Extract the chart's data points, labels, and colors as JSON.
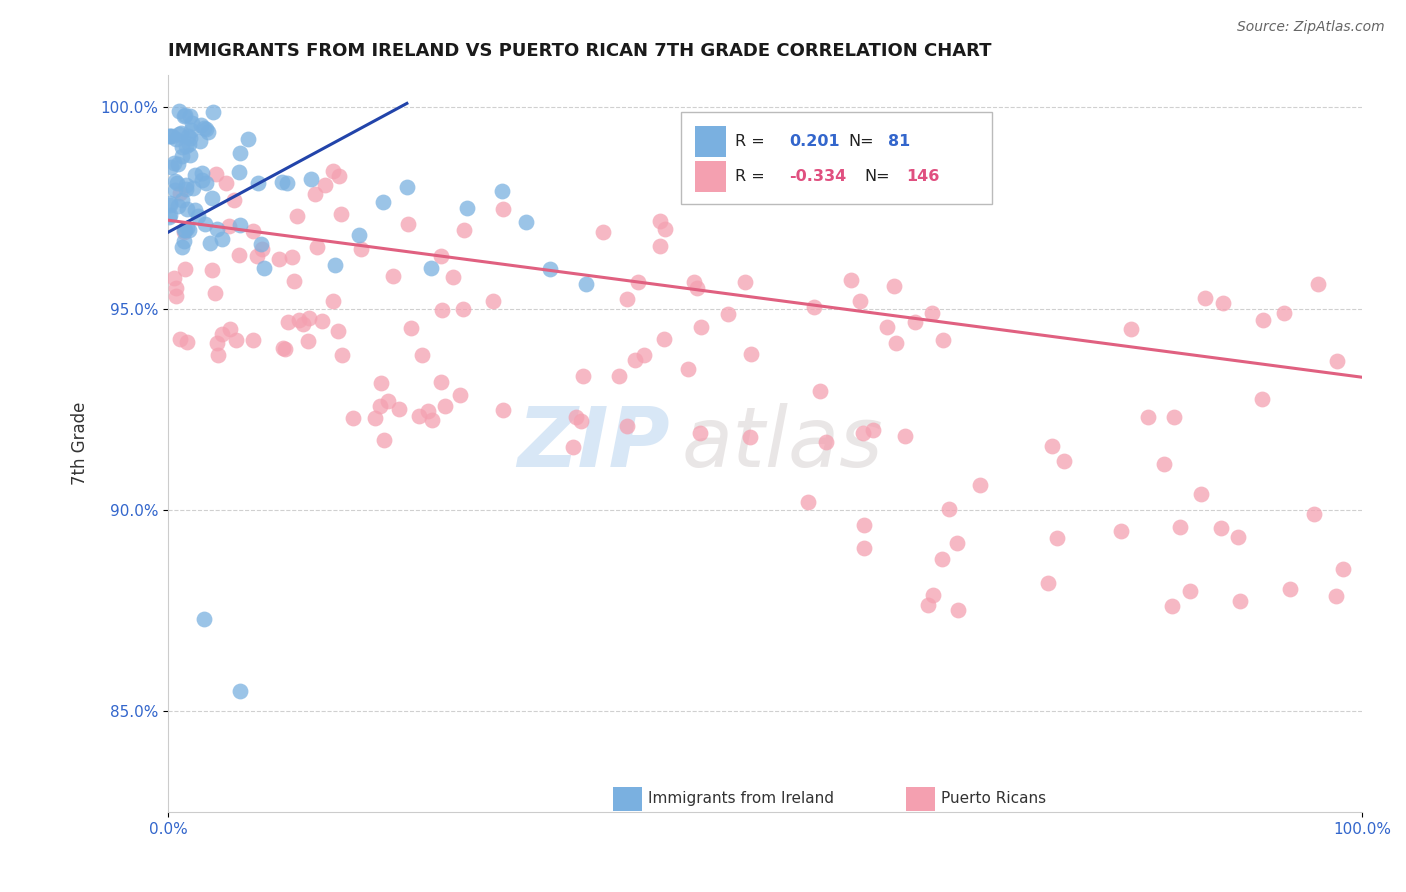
{
  "title": "IMMIGRANTS FROM IRELAND VS PUERTO RICAN 7TH GRADE CORRELATION CHART",
  "source": "Source: ZipAtlas.com",
  "ylabel": "7th Grade",
  "xlim": [
    0.0,
    1.0
  ],
  "ylim": [
    0.825,
    1.008
  ],
  "yticks": [
    0.85,
    0.9,
    0.95,
    1.0
  ],
  "ytick_labels": [
    "85.0%",
    "90.0%",
    "95.0%",
    "100.0%"
  ],
  "title_color": "#1a1a1a",
  "title_fontsize": 13,
  "background_color": "#ffffff",
  "watermark_zip": "ZIP",
  "watermark_atlas": "atlas",
  "legend_R_blue": "0.201",
  "legend_N_blue": "81",
  "legend_R_pink": "-0.334",
  "legend_N_pink": "146",
  "blue_scatter_color": "#7ab0e0",
  "pink_scatter_color": "#f4a0b0",
  "blue_line_color": "#2244aa",
  "pink_line_color": "#e06080",
  "blue_line_x0": 0.0,
  "blue_line_y0": 0.969,
  "blue_line_x1": 0.2,
  "blue_line_y1": 1.001,
  "pink_line_x0": 0.0,
  "pink_line_y0": 0.972,
  "pink_line_x1": 1.0,
  "pink_line_y1": 0.933
}
